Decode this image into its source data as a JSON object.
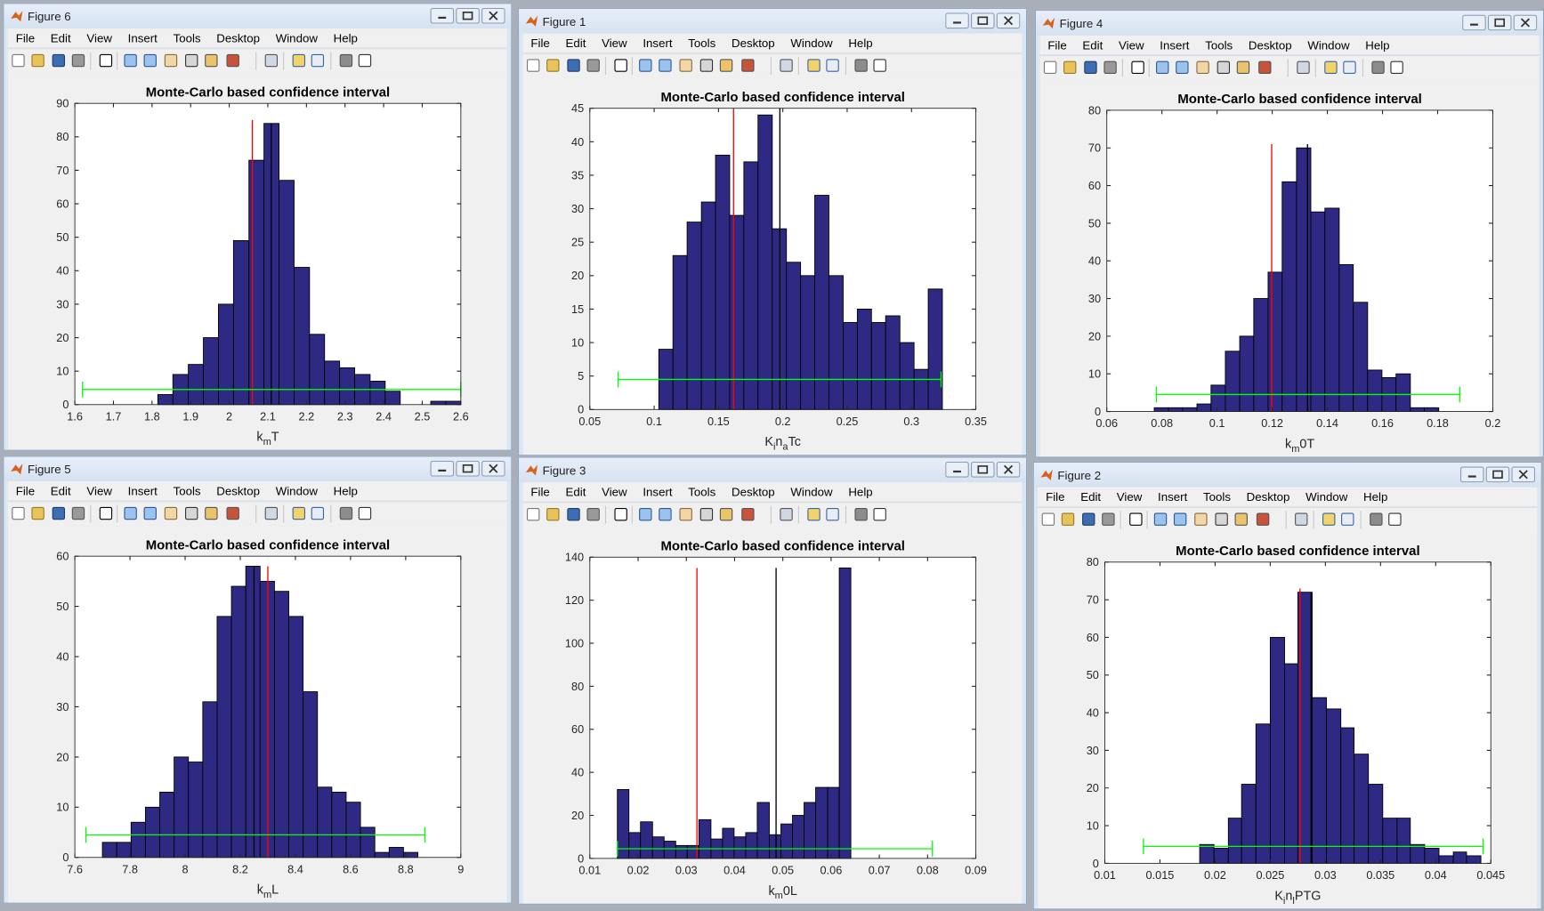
{
  "menu": [
    "File",
    "Edit",
    "View",
    "Insert",
    "Tools",
    "Desktop",
    "Window",
    "Help"
  ],
  "windows": [
    "Figure 6",
    "Figure 1",
    "Figure 4",
    "Figure 5",
    "Figure 3",
    "Figure 2"
  ],
  "chart_data": [
    {
      "type": "histogram",
      "title": "Monte-Carlo based confidence interval",
      "xlabel": [
        {
          "text": "k"
        },
        {
          "text": "m",
          "sub": true
        },
        {
          "text": "T"
        }
      ],
      "bins": [
        1.815,
        1.854,
        1.894,
        1.933,
        1.972,
        2.011,
        2.051,
        2.09,
        2.129,
        2.168,
        2.208,
        2.247,
        2.286,
        2.325,
        2.365,
        2.404,
        2.443,
        2.482,
        2.522,
        2.561,
        2.6
      ],
      "counts": [
        3,
        9,
        12,
        20,
        30,
        49,
        73,
        84,
        67,
        41,
        21,
        13,
        11,
        9,
        7,
        4,
        0,
        0,
        1,
        1
      ],
      "color": "#2e2a84",
      "xlim": [
        1.6,
        2.6
      ],
      "xticks": [
        1.6,
        1.7,
        1.8,
        1.9,
        2,
        2.1,
        2.2,
        2.3,
        2.4,
        2.5,
        2.6
      ],
      "ylim": [
        0,
        90
      ],
      "yticks": [
        0,
        10,
        20,
        30,
        40,
        50,
        60,
        70,
        80,
        90
      ],
      "lines": [
        {
          "x": 2.06,
          "top": 85,
          "color": "#ff0000"
        },
        {
          "x": 2.109,
          "top": 84,
          "color": "#000000"
        }
      ],
      "interval": {
        "low": 1.62,
        "high": 2.6,
        "y": 4.5,
        "color": "#00ff00"
      }
    },
    {
      "type": "histogram",
      "title": "Monte-Carlo based confidence interval",
      "xlabel": [
        {
          "text": "K"
        },
        {
          "text": "i",
          "sub": true
        },
        {
          "text": "n"
        },
        {
          "text": "a",
          "sub": true
        },
        {
          "text": "Tc"
        }
      ],
      "bins": [
        0.1036,
        0.1146,
        0.1256,
        0.1367,
        0.1477,
        0.1587,
        0.1697,
        0.1807,
        0.1918,
        0.2028,
        0.2138,
        0.2248,
        0.2358,
        0.2469,
        0.2579,
        0.2689,
        0.2799,
        0.291,
        0.302,
        0.313,
        0.324
      ],
      "counts": [
        9,
        23,
        28,
        31,
        38,
        29,
        37,
        44,
        27,
        22,
        20,
        32,
        20,
        13,
        15,
        13,
        14,
        10,
        6,
        18
      ],
      "color": "#2e2a84",
      "xlim": [
        0.05,
        0.35
      ],
      "xticks": [
        0.05,
        0.1,
        0.15,
        0.2,
        0.25,
        0.3,
        0.35
      ],
      "ylim": [
        0,
        45
      ],
      "yticks": [
        0,
        5,
        10,
        15,
        20,
        25,
        30,
        35,
        40,
        45
      ],
      "lines": [
        {
          "x": 0.1617,
          "top": 45,
          "color": "#ff0000"
        },
        {
          "x": 0.1977,
          "top": 45,
          "color": "#000000"
        }
      ],
      "interval": {
        "low": 0.072,
        "high": 0.323,
        "y": 4.5,
        "color": "#00ff00"
      }
    },
    {
      "type": "histogram",
      "title": "Monte-Carlo based confidence interval",
      "xlabel": [
        {
          "text": "k"
        },
        {
          "text": "m",
          "sub": true
        },
        {
          "text": "0T"
        }
      ],
      "bins": [
        0.0772,
        0.0824,
        0.0875,
        0.0927,
        0.0978,
        0.103,
        0.1082,
        0.1133,
        0.1185,
        0.1236,
        0.1288,
        0.134,
        0.1391,
        0.1443,
        0.1494,
        0.1546,
        0.1598,
        0.1649,
        0.1701,
        0.1752,
        0.1804
      ],
      "counts": [
        1,
        1,
        1,
        2,
        7,
        16,
        20,
        30,
        37,
        61,
        70,
        53,
        54,
        39,
        29,
        11,
        9,
        10,
        1,
        1
      ],
      "color": "#2e2a84",
      "xlim": [
        0.06,
        0.2
      ],
      "xticks": [
        0.06,
        0.08,
        0.1,
        0.12,
        0.14,
        0.16,
        0.18,
        0.2
      ],
      "ylim": [
        0,
        80
      ],
      "yticks": [
        0,
        10,
        20,
        30,
        40,
        50,
        60,
        70,
        80
      ],
      "lines": [
        {
          "x": 0.1198,
          "top": 71,
          "color": "#ff0000"
        },
        {
          "x": 0.1328,
          "top": 71,
          "color": "#000000"
        }
      ],
      "interval": {
        "low": 0.078,
        "high": 0.188,
        "y": 4.5,
        "color": "#00ff00"
      }
    },
    {
      "type": "histogram",
      "title": "Monte-Carlo based confidence interval",
      "xlabel": [
        {
          "text": "k"
        },
        {
          "text": "m",
          "sub": true
        },
        {
          "text": "L"
        }
      ],
      "bins": [
        7.7,
        7.752,
        7.804,
        7.856,
        7.908,
        7.96,
        8.012,
        8.064,
        8.116,
        8.168,
        8.22,
        8.272,
        8.324,
        8.376,
        8.428,
        8.48,
        8.532,
        8.584,
        8.636,
        8.688,
        8.74,
        8.792,
        8.844
      ],
      "counts": [
        3,
        3,
        7,
        10,
        13,
        20,
        19,
        31,
        48,
        54,
        58,
        55,
        53,
        48,
        33,
        14,
        13,
        11,
        6,
        1,
        2,
        1
      ],
      "color": "#2e2a84",
      "xlim": [
        7.6,
        9
      ],
      "xticks": [
        7.6,
        7.8,
        8,
        8.2,
        8.4,
        8.6,
        8.8,
        9
      ],
      "ylim": [
        0,
        60
      ],
      "yticks": [
        0,
        10,
        20,
        30,
        40,
        50,
        60
      ],
      "lines": [
        {
          "x": 8.25,
          "top": 58,
          "color": "#000000"
        },
        {
          "x": 8.3,
          "top": 58,
          "color": "#ff0000"
        }
      ],
      "interval": {
        "low": 7.64,
        "high": 8.87,
        "y": 4.5,
        "color": "#00ff00"
      }
    },
    {
      "type": "histogram",
      "title": "Monte-Carlo based confidence interval",
      "xlabel": [
        {
          "text": "k"
        },
        {
          "text": "m",
          "sub": true
        },
        {
          "text": "0L"
        }
      ],
      "bins": [
        0.0157,
        0.0181,
        0.0205,
        0.023,
        0.0254,
        0.0278,
        0.0302,
        0.0326,
        0.0351,
        0.0375,
        0.0399,
        0.0423,
        0.0447,
        0.0472,
        0.0496,
        0.052,
        0.0544,
        0.0568,
        0.0593,
        0.0617,
        0.0641
      ],
      "counts": [
        32,
        12,
        17,
        10,
        8,
        6,
        6,
        18,
        9,
        14,
        10,
        12,
        26,
        11,
        16,
        20,
        26,
        33,
        33,
        135
      ],
      "color": "#2e2a84",
      "xlim": [
        0.01,
        0.09
      ],
      "xticks": [
        0.01,
        0.02,
        0.03,
        0.04,
        0.05,
        0.06,
        0.07,
        0.08,
        0.09
      ],
      "ylim": [
        0,
        140
      ],
      "yticks": [
        0,
        20,
        40,
        60,
        80,
        100,
        120,
        140
      ],
      "lines": [
        {
          "x": 0.0322,
          "top": 135,
          "color": "#ff0000"
        },
        {
          "x": 0.0486,
          "top": 135,
          "color": "#000000"
        }
      ],
      "interval": {
        "low": 0.0157,
        "high": 0.081,
        "y": 4.5,
        "color": "#00ff00"
      }
    },
    {
      "type": "histogram",
      "title": "Monte-Carlo based confidence interval",
      "xlabel": [
        {
          "text": "K"
        },
        {
          "text": "i",
          "sub": true
        },
        {
          "text": "n"
        },
        {
          "text": "l",
          "sub": true
        },
        {
          "text": "PTG"
        }
      ],
      "bins": [
        0.0186,
        0.0199,
        0.0212,
        0.0224,
        0.0237,
        0.025,
        0.0263,
        0.0275,
        0.0288,
        0.0301,
        0.0314,
        0.0326,
        0.0339,
        0.0352,
        0.0365,
        0.0377,
        0.039,
        0.0403,
        0.0416,
        0.0428,
        0.0441
      ],
      "counts": [
        5,
        4,
        12,
        21,
        37,
        60,
        53,
        72,
        44,
        41,
        36,
        29,
        21,
        12,
        12,
        5,
        4,
        2,
        3,
        2
      ],
      "color": "#2e2a84",
      "xlim": [
        0.01,
        0.045
      ],
      "xticks": [
        0.01,
        0.015,
        0.02,
        0.025,
        0.03,
        0.035,
        0.04,
        0.045
      ],
      "ylim": [
        0,
        80
      ],
      "yticks": [
        0,
        10,
        20,
        30,
        40,
        50,
        60,
        70,
        80
      ],
      "lines": [
        {
          "x": 0.0277,
          "top": 73,
          "color": "#ff0000"
        },
        {
          "x": 0.0287,
          "top": 72,
          "color": "#000000"
        }
      ],
      "interval": {
        "low": 0.0135,
        "high": 0.0443,
        "y": 4.5,
        "color": "#00ff00"
      }
    }
  ]
}
